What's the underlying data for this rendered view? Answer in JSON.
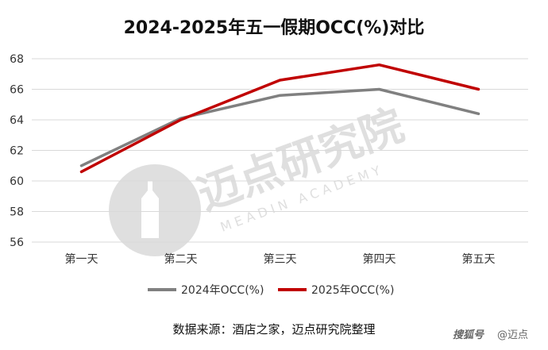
{
  "chart_data": {
    "type": "line",
    "title": "2024-2025年五一假期OCC(%)对比",
    "categories": [
      "第一天",
      "第二天",
      "第三天",
      "第四天",
      "第五天"
    ],
    "series": [
      {
        "name": "2024年OCC(%)",
        "color": "#808080",
        "values": [
          61.0,
          64.1,
          65.6,
          66.0,
          64.4
        ]
      },
      {
        "name": "2025年OCC(%)",
        "color": "#c00000",
        "values": [
          60.6,
          64.0,
          66.6,
          67.6,
          66.0
        ]
      }
    ],
    "ylim": [
      56,
      68
    ],
    "yticks": [
      56,
      58,
      60,
      62,
      64,
      66,
      68
    ],
    "grid": true,
    "legend_position": "bottom",
    "xlabel": "",
    "ylabel": ""
  },
  "source": "数据来源：酒店之家，迈点研究院整理",
  "watermark": {
    "text": "迈点研究院",
    "subtext": "MEADIN ACADEMY"
  },
  "brand": {
    "platform": "搜狐号",
    "account": "@迈点"
  }
}
